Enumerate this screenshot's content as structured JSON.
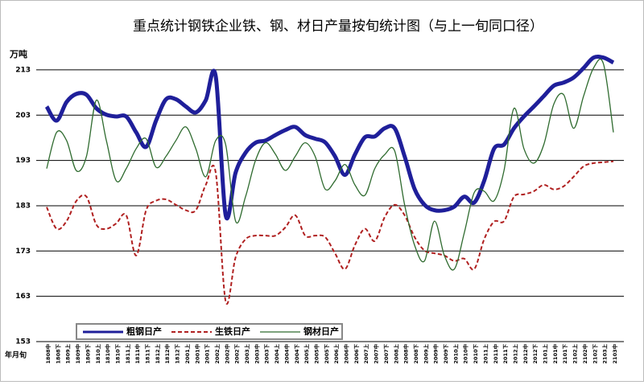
{
  "chart_data": {
    "type": "line",
    "title": "重点统计钢铁企业铁、钢、材日产量按旬统计图（与上一旬同口径）",
    "y_label": "万吨",
    "x_label": "年月旬",
    "categories": [
      "1808中",
      "1808下",
      "1809上",
      "1809中",
      "1809下",
      "1810上",
      "1810中",
      "1810下",
      "1811上",
      "1811中",
      "1811下",
      "1812上",
      "1812中",
      "1812下",
      "2001上",
      "2001中",
      "2001下",
      "2002上",
      "2002中",
      "2002下",
      "2003上",
      "2003中",
      "2003下",
      "2004上",
      "2004中",
      "2004下",
      "2005上",
      "2005中",
      "2005下",
      "2006上",
      "2006中",
      "2006下",
      "2007上",
      "2007中",
      "2007下",
      "2008上",
      "2008中",
      "2008下",
      "2009上",
      "2009中",
      "2009下",
      "2010上",
      "2010中",
      "2010下",
      "2011上",
      "2011中",
      "2011下",
      "2012上",
      "2012中",
      "2012下",
      "2101上",
      "2101中",
      "2101下",
      "2102上",
      "2102中",
      "2102下",
      "2103上",
      "2103中"
    ],
    "series": [
      {
        "name": "粗钢日产",
        "color": "#1f1f9a",
        "width": 5,
        "dash": "none",
        "values": [
          204.9,
          201.8,
          205.9,
          207.7,
          207.5,
          204.5,
          203.1,
          202.7,
          202.7,
          199.2,
          196.0,
          201.8,
          206.5,
          206.5,
          204.9,
          203.6,
          206.3,
          211.6,
          180.9,
          190.3,
          194.7,
          196.9,
          197.4,
          198.6,
          199.7,
          200.4,
          198.6,
          197.8,
          197.0,
          193.9,
          189.8,
          194.3,
          198.1,
          198.3,
          200.1,
          200.1,
          193.9,
          186.7,
          183.2,
          182.0,
          182.0,
          182.8,
          185.0,
          183.7,
          188.5,
          195.6,
          196.5,
          200.1,
          202.7,
          204.9,
          207.2,
          209.5,
          210.2,
          211.3,
          213.4,
          215.7,
          215.7,
          214.6
        ]
      },
      {
        "name": "生铁日产",
        "color": "#b02020",
        "width": 2,
        "dash": "5 3",
        "values": [
          182.7,
          177.9,
          179.6,
          184.1,
          185.0,
          178.8,
          177.9,
          179.1,
          180.9,
          172.0,
          182.0,
          184.1,
          184.4,
          183.2,
          182.0,
          182.0,
          187.6,
          190.3,
          161.9,
          171.6,
          175.6,
          176.4,
          176.4,
          176.4,
          178.2,
          180.9,
          176.4,
          176.4,
          176.1,
          172.5,
          169.0,
          174.3,
          177.9,
          175.2,
          180.5,
          183.2,
          180.9,
          176.1,
          173.1,
          172.5,
          172.0,
          170.8,
          171.3,
          169.0,
          175.6,
          179.5,
          179.6,
          185.0,
          185.5,
          186.2,
          187.6,
          186.6,
          187.3,
          189.4,
          191.7,
          192.4,
          192.6,
          192.8
        ]
      },
      {
        "name": "钢材日产",
        "color": "#2f6b2f",
        "width": 1.3,
        "dash": "none",
        "values": [
          191.2,
          199.2,
          197.4,
          190.7,
          193.9,
          206.3,
          197.4,
          188.5,
          191.2,
          195.6,
          197.8,
          191.5,
          193.9,
          197.4,
          200.4,
          195.6,
          189.4,
          197.4,
          196.5,
          179.6,
          185.0,
          193.0,
          196.9,
          194.4,
          190.8,
          193.9,
          196.9,
          193.9,
          186.7,
          188.5,
          192.1,
          187.6,
          185.3,
          191.2,
          194.3,
          195.1,
          183.2,
          174.3,
          170.8,
          179.6,
          172.0,
          169.0,
          177.0,
          185.9,
          186.2,
          184.1,
          190.8,
          204.5,
          195.6,
          192.4,
          196.5,
          205.4,
          207.5,
          200.1,
          207.2,
          213.4,
          214.3,
          199.2
        ]
      }
    ],
    "ylim": [
      153,
      216
    ],
    "yticks": [
      153,
      163,
      173,
      183,
      193,
      203,
      213
    ],
    "grid": true,
    "legend": "lower left"
  }
}
